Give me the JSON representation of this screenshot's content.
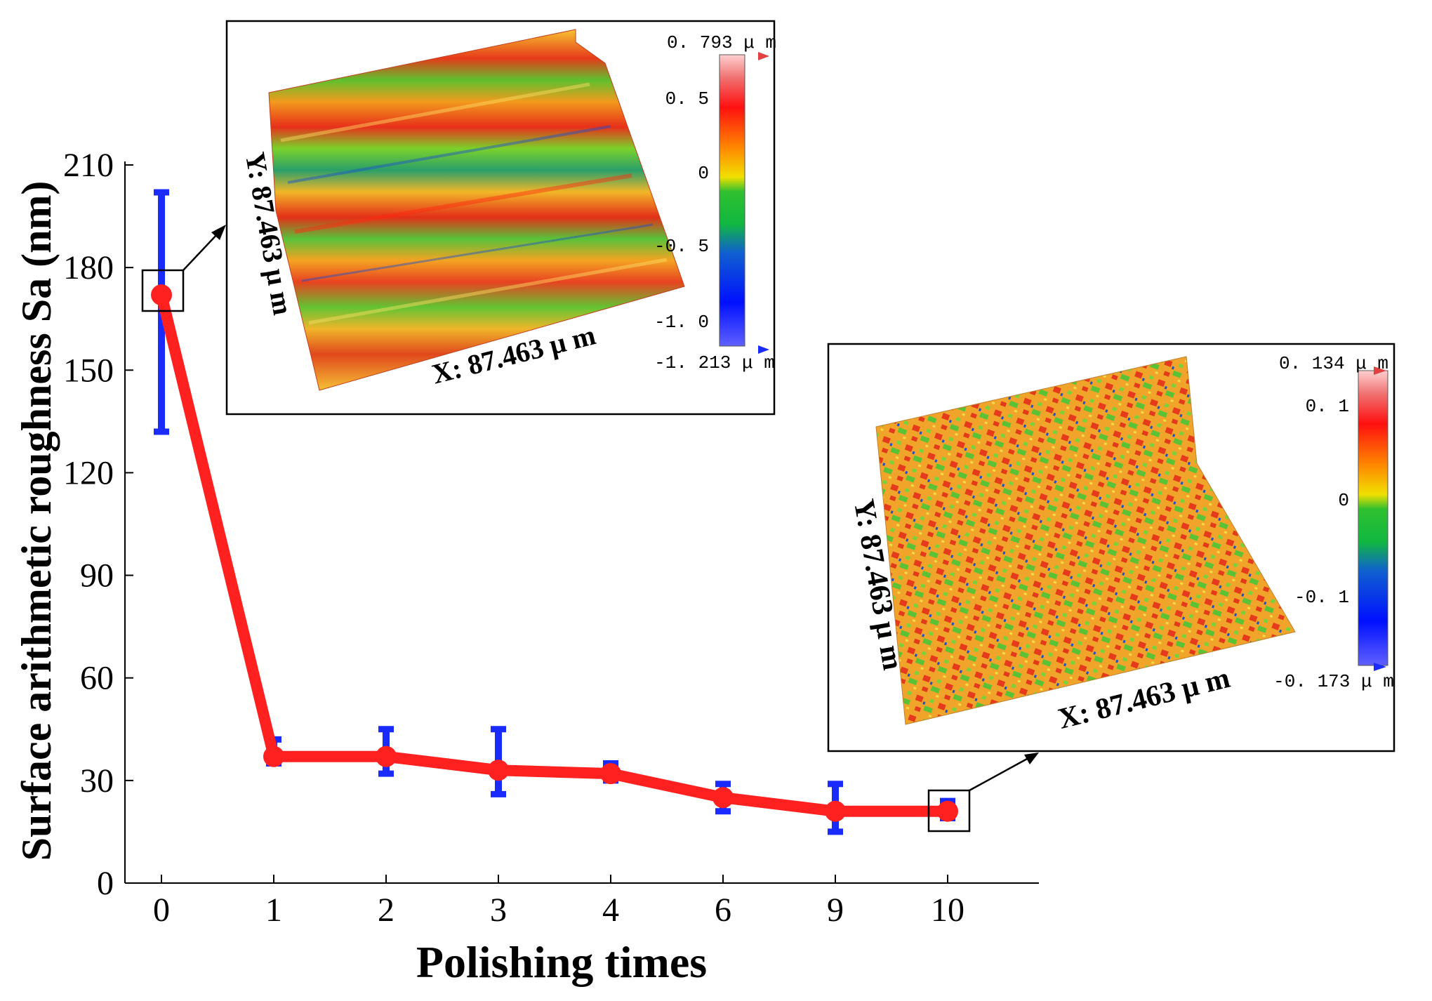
{
  "chart_data": {
    "type": "line",
    "xlabel": "Polishing times",
    "ylabel": "Surface arithmetic roughness  Sa (nm)",
    "categories": [
      "0",
      "1",
      "2",
      "3",
      "4",
      "6",
      "9",
      "10"
    ],
    "ylim": [
      0,
      210
    ],
    "yticks": [
      "0",
      "30",
      "60",
      "90",
      "120",
      "150",
      "180",
      "210"
    ],
    "series": [
      {
        "name": "Sa",
        "color": "#ff2020",
        "values": [
          172,
          37,
          37,
          33,
          32,
          25,
          21,
          21
        ],
        "error_low": [
          132,
          35,
          32,
          26,
          30,
          21,
          15,
          19
        ],
        "error_high": [
          202,
          42,
          45,
          45,
          35,
          29,
          29,
          24
        ],
        "error_color": "#1a2bff"
      }
    ],
    "insets": [
      {
        "x_label": "X: 87.463 μ m",
        "y_label": "Y: 87.463 μ m",
        "scale_max": "0. 793 μ m",
        "scale_min": "-1. 213 μ m",
        "scale_ticks": [
          "0. 5",
          "0",
          "-0. 5",
          "-1. 0"
        ]
      },
      {
        "x_label": "X: 87.463 μ m",
        "y_label": "Y: 87.463 μ m",
        "scale_max": "0. 134 μ m",
        "scale_min": "-0. 173 μ m",
        "scale_ticks": [
          "0. 1",
          "0",
          "-0. 1"
        ]
      }
    ]
  }
}
